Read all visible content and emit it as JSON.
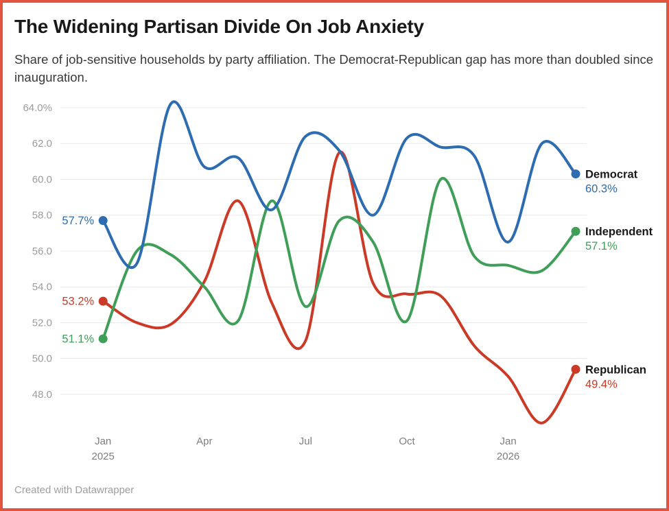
{
  "frame": {
    "border_color": "#e2543e",
    "background": "#ffffff"
  },
  "header": {
    "title": "The Widening Partisan Divide On Job Anxiety",
    "subtitle": "Share of job-sensitive households by party affiliation. The Democrat-Republican gap has more than doubled since inauguration."
  },
  "footer": {
    "credit": "Created with Datawrapper"
  },
  "chart_data": {
    "type": "line",
    "title": "The Widening Partisan Divide On Job Anxiety",
    "unit": "%",
    "grid": "horizontal",
    "legend_position": "end-of-line",
    "ylim": [
      46,
      64.5
    ],
    "x": [
      "Jan 2025",
      "Feb 2025",
      "Mar 2025",
      "Apr 2025",
      "May 2025",
      "Jun 2025",
      "Jul 2025",
      "Aug 2025",
      "Sep 2025",
      "Oct 2025",
      "Nov 2025",
      "Dec 2025",
      "Jan 2026",
      "Feb 2026",
      "Mar 2026"
    ],
    "yticks": [
      {
        "value": 64,
        "label": "64.0%"
      },
      {
        "value": 62,
        "label": "62.0"
      },
      {
        "value": 60,
        "label": "60.0"
      },
      {
        "value": 58,
        "label": "58.0"
      },
      {
        "value": 56,
        "label": "56.0"
      },
      {
        "value": 54,
        "label": "54.0"
      },
      {
        "value": 52,
        "label": "52.0"
      },
      {
        "value": 50,
        "label": "50.0"
      },
      {
        "value": 48,
        "label": "48.0"
      }
    ],
    "xticks": [
      {
        "index": 0,
        "label": "Jan",
        "sublabel": "2025"
      },
      {
        "index": 3,
        "label": "Apr"
      },
      {
        "index": 6,
        "label": "Jul"
      },
      {
        "index": 9,
        "label": "Oct"
      },
      {
        "index": 12,
        "label": "Jan",
        "sublabel": "2026"
      }
    ],
    "series": [
      {
        "name": "Democrat",
        "color": "#2d6cb0",
        "values": [
          57.7,
          55.3,
          64.2,
          60.7,
          61.2,
          58.3,
          62.4,
          61.6,
          58.0,
          62.3,
          61.8,
          61.3,
          56.5,
          62.0,
          60.3
        ],
        "start_label": "57.7%",
        "end_label": "60.3%"
      },
      {
        "name": "Independent",
        "color": "#3f9e58",
        "values": [
          51.1,
          56.0,
          55.8,
          54.0,
          52.1,
          58.8,
          52.9,
          57.7,
          56.5,
          52.1,
          60.0,
          55.7,
          55.2,
          54.9,
          57.1
        ],
        "start_label": "51.1%",
        "end_label": "57.1%"
      },
      {
        "name": "Republican",
        "color": "#cb3a27",
        "values": [
          53.2,
          52.0,
          51.9,
          54.3,
          58.8,
          53.1,
          51.0,
          61.5,
          54.2,
          53.6,
          53.5,
          50.7,
          49.0,
          46.4,
          49.4
        ],
        "start_label": "53.2%",
        "end_label": "49.4%"
      }
    ]
  }
}
